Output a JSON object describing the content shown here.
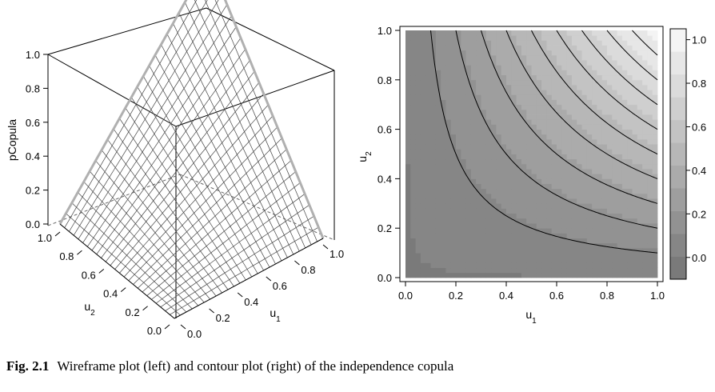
{
  "caption": {
    "label": "Fig. 2.1",
    "text": "Wireframe plot (left) and contour plot (right) of the independence copula"
  },
  "chart_data": [
    {
      "type": "surface",
      "function": "u1*u2",
      "zlabel": "pCopula",
      "xlabel": "u",
      "xlabel_sub": "1",
      "ylabel": "u",
      "ylabel_sub": "2",
      "zlim": [
        0,
        1
      ],
      "xlim": [
        0,
        1
      ],
      "ylim": [
        0,
        1
      ],
      "z_ticks": [
        "0.0",
        "0.2",
        "0.4",
        "0.6",
        "0.8",
        "1.0"
      ],
      "x_ticks": [
        "0.0",
        "0.2",
        "0.4",
        "0.6",
        "0.8",
        "1.0"
      ],
      "y_ticks": [
        "0.0",
        "0.2",
        "0.4",
        "0.6",
        "0.8",
        "1.0"
      ],
      "grid_n": 25,
      "wire_color": "#444444"
    },
    {
      "type": "heatmap",
      "function": "u1*u2",
      "xlabel": "u",
      "xlabel_sub": "1",
      "ylabel": "u",
      "ylabel_sub": "2",
      "xlim": [
        0,
        1
      ],
      "ylim": [
        0,
        1
      ],
      "x_ticks": [
        "0.0",
        "0.2",
        "0.4",
        "0.6",
        "0.8",
        "1.0"
      ],
      "y_ticks": [
        "0.0",
        "0.2",
        "0.4",
        "0.6",
        "0.8",
        "1.0"
      ],
      "contour_levels": [
        0.1,
        0.2,
        0.3,
        0.4,
        0.5,
        0.6,
        0.7,
        0.8,
        0.9
      ],
      "colorbar_ticks": [
        "0.0",
        "0.2",
        "0.4",
        "0.6",
        "0.8",
        "1.0"
      ],
      "colorbar_range": [
        -0.1,
        1.05
      ],
      "colorbar_colors": [
        "#7a7a7a",
        "#868686",
        "#929292",
        "#9e9e9e",
        "#ababab",
        "#b7b7b7",
        "#c3c3c3",
        "#cfcfcf",
        "#dbdbdb",
        "#e7e7e7",
        "#f4f4f4"
      ],
      "legend_position": "right"
    }
  ]
}
